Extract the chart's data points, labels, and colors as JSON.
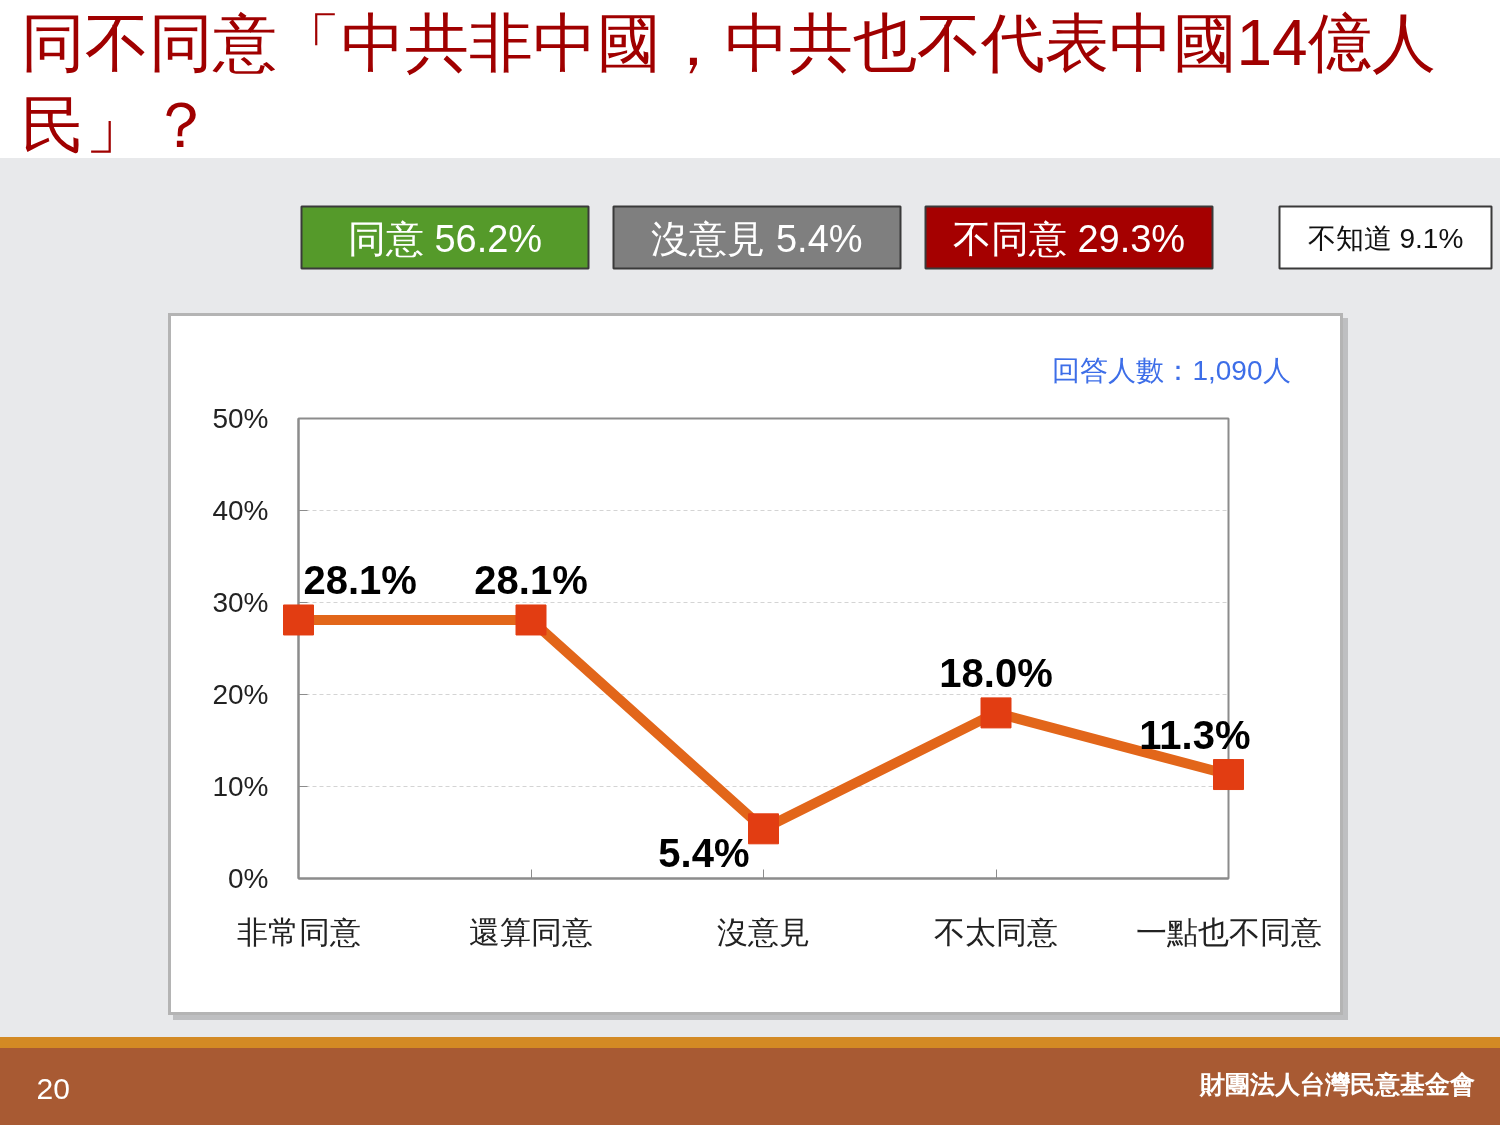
{
  "chart_data": [
    {
      "type": "other",
      "title": "同不同意「中共非中國，中共也不代表中國14億人民」？",
      "annotations": [
        "同意 56.2%",
        "沒意見 5.4%",
        "不同意 29.3%",
        "不知道 9.1%"
      ],
      "colors": [
        "#559a2a",
        "#7f7f7f",
        "#a50000",
        "#ffffff"
      ]
    },
    {
      "type": "line",
      "categories": [
        "非常同意",
        "還算同意",
        "沒意見",
        "不太同意",
        "一點也不同意"
      ],
      "values": [
        28.1,
        28.1,
        5.4,
        18.0,
        11.3
      ],
      "value_labels": [
        "28.1%",
        "28.1%",
        "5.4%",
        "18.0%",
        "11.3%"
      ],
      "color": "#e2661a",
      "marker": "square",
      "ylim": [
        0,
        50
      ],
      "yticks": [
        {
          "value": 0,
          "label": "0%"
        },
        {
          "value": 10,
          "label": "10%"
        },
        {
          "value": 20,
          "label": "20%"
        },
        {
          "value": 30,
          "label": "30%"
        },
        {
          "value": 40,
          "label": "40%"
        },
        {
          "value": 50,
          "label": "50%"
        }
      ],
      "grid": "y",
      "annotations": [
        "回答人數：1,090人",
        "20",
        "財團法人台灣民意基金會"
      ]
    }
  ]
}
